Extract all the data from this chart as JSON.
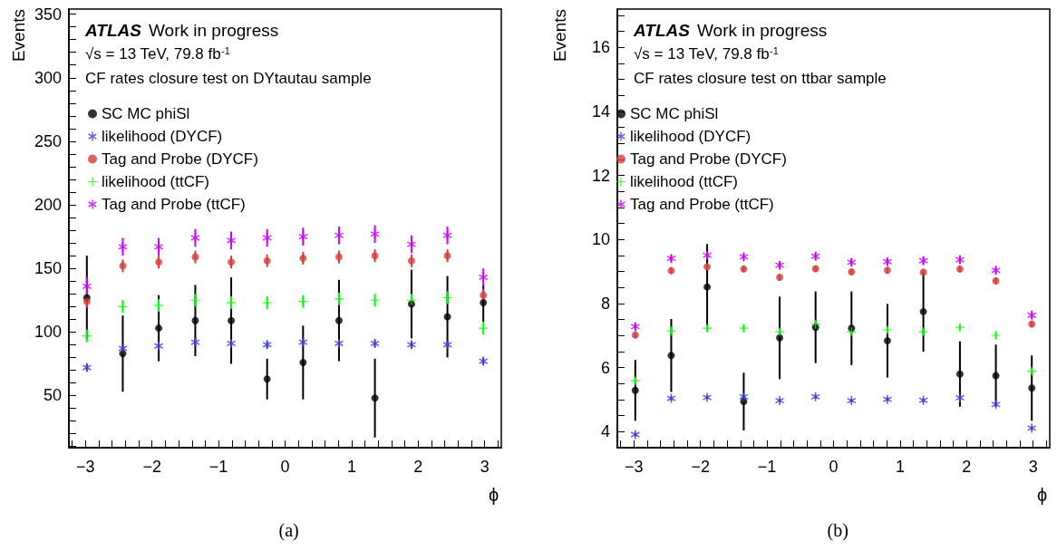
{
  "chart_data": [
    {
      "type": "scatter",
      "title": "(a)",
      "xlabel": "ϕ",
      "ylabel": "Events",
      "annotations": [
        "ATLAS",
        "Work in progress",
        "√s = 13 TeV, 79.8 fb$^{-1}$",
        "CF rates closure test on DYtautau sample"
      ],
      "x": [
        -2.98,
        -2.44,
        -1.9,
        -1.35,
        -0.81,
        -0.27,
        0.27,
        0.81,
        1.35,
        1.9,
        2.44,
        2.98
      ],
      "series": [
        {
          "name": "SC MC phiSl",
          "color": "#000000",
          "marker": "circle",
          "values": [
            127,
            83,
            103,
            109,
            109,
            63,
            76,
            109,
            48,
            122,
            112,
            123
          ],
          "errors": [
            33,
            30,
            26,
            28,
            34,
            16,
            29,
            32,
            31,
            27,
            32,
            15
          ]
        },
        {
          "name": "likelihood (DYCF)",
          "color": "#3c3cd8",
          "marker": "star",
          "values": [
            72,
            87,
            89,
            92,
            91,
            90,
            92,
            91,
            91,
            90,
            90,
            77
          ],
          "errors": [
            3,
            3,
            3,
            3,
            3,
            3,
            3,
            3,
            3,
            3,
            3,
            3
          ]
        },
        {
          "name": "Tag and Probe (DYCF)",
          "color": "#d83c3c",
          "marker": "circle",
          "values": [
            124,
            152,
            155,
            159,
            155,
            156,
            158,
            159,
            160,
            156,
            160,
            129
          ],
          "errors": [
            5,
            5,
            5,
            5,
            5,
            5,
            5,
            5,
            5,
            5,
            5,
            5
          ]
        },
        {
          "name": "likelihood (ttCF)",
          "color": "#00ff00",
          "marker": "cross",
          "values": [
            97,
            120,
            121,
            125,
            123,
            123,
            124,
            126,
            125,
            125,
            127,
            103
          ],
          "errors": [
            5,
            5,
            5,
            5,
            5,
            5,
            5,
            5,
            5,
            5,
            5,
            5
          ]
        },
        {
          "name": "Tag and Probe (ttCF)",
          "color": "#cc00ff",
          "marker": "star",
          "values": [
            136,
            167,
            167,
            174,
            172,
            174,
            175,
            176,
            177,
            169,
            176,
            143
          ],
          "errors": [
            7,
            7,
            7,
            7,
            7,
            7,
            7,
            7,
            7,
            7,
            7,
            7
          ]
        }
      ],
      "xlim": [
        -3.25,
        3.25
      ],
      "xticks": [
        {
          "value": -3.2,
          "label": null
        },
        {
          "value": -3,
          "label": "−3"
        },
        {
          "value": -2.8,
          "label": null
        },
        {
          "value": -2.6,
          "label": null
        },
        {
          "value": -2.4,
          "label": null
        },
        {
          "value": -2.2,
          "label": null
        },
        {
          "value": -2,
          "label": "−2"
        },
        {
          "value": -1.8,
          "label": null
        },
        {
          "value": -1.6,
          "label": null
        },
        {
          "value": -1.4,
          "label": null
        },
        {
          "value": -1.2,
          "label": null
        },
        {
          "value": -1,
          "label": "−1"
        },
        {
          "value": -0.8,
          "label": null
        },
        {
          "value": -0.6,
          "label": null
        },
        {
          "value": -0.4,
          "label": null
        },
        {
          "value": -0.2,
          "label": null
        },
        0,
        {
          "value": 0.2,
          "label": null
        },
        {
          "value": 0.4,
          "label": null
        },
        {
          "value": 0.6,
          "label": null
        },
        {
          "value": 0.8,
          "label": null
        },
        1,
        {
          "value": 1.2,
          "label": null
        },
        {
          "value": 1.4,
          "label": null
        },
        {
          "value": 1.6,
          "label": null
        },
        {
          "value": 1.8,
          "label": null
        },
        2,
        {
          "value": 2.2,
          "label": null
        },
        {
          "value": 2.4,
          "label": null
        },
        {
          "value": 2.6,
          "label": null
        },
        {
          "value": 2.8,
          "label": null
        },
        3,
        {
          "value": 3.2,
          "label": null
        }
      ],
      "ylim": [
        9,
        354
      ],
      "yticks": [
        {
          "value": 10,
          "label": null
        },
        {
          "value": 20,
          "label": null
        },
        {
          "value": 30,
          "label": null
        },
        {
          "value": 40,
          "label": null
        },
        50,
        {
          "value": 60,
          "label": null
        },
        {
          "value": 70,
          "label": null
        },
        {
          "value": 80,
          "label": null
        },
        {
          "value": 90,
          "label": null
        },
        100,
        {
          "value": 110,
          "label": null
        },
        {
          "value": 120,
          "label": null
        },
        {
          "value": 130,
          "label": null
        },
        {
          "value": 140,
          "label": null
        },
        150,
        {
          "value": 160,
          "label": null
        },
        {
          "value": 170,
          "label": null
        },
        {
          "value": 180,
          "label": null
        },
        {
          "value": 190,
          "label": null
        },
        200,
        {
          "value": 210,
          "label": null
        },
        {
          "value": 220,
          "label": null
        },
        {
          "value": 230,
          "label": null
        },
        {
          "value": 240,
          "label": null
        },
        250,
        {
          "value": 260,
          "label": null
        },
        {
          "value": 270,
          "label": null
        },
        {
          "value": 280,
          "label": null
        },
        {
          "value": 290,
          "label": null
        },
        300,
        {
          "value": 310,
          "label": null
        },
        {
          "value": 320,
          "label": null
        },
        {
          "value": 330,
          "label": null
        },
        {
          "value": 340,
          "label": null
        },
        350
      ],
      "grid": false,
      "legend": "top left"
    },
    {
      "type": "scatter",
      "title": "(b)",
      "xlabel": "ϕ",
      "ylabel": "Events",
      "annotations": [
        "ATLAS",
        "Work in progress",
        "√s = 13 TeV, 79.8 fb$^{-1}$",
        "CF rates closure test on ttbar sample"
      ],
      "x": [
        -2.98,
        -2.44,
        -1.9,
        -1.35,
        -0.81,
        -0.27,
        0.27,
        0.81,
        1.35,
        1.9,
        2.44,
        2.98
      ],
      "series": [
        {
          "name": "SC MC phiSl",
          "color": "#000000",
          "marker": "circle",
          "values": [
            5.29,
            6.38,
            8.52,
            4.94,
            6.93,
            7.26,
            7.23,
            6.84,
            7.75,
            5.8,
            5.75,
            5.36
          ],
          "errors": [
            0.95,
            1.14,
            1.34,
            0.9,
            1.29,
            1.12,
            1.15,
            1.15,
            1.25,
            1.02,
            0.97,
            1.02
          ]
        },
        {
          "name": "likelihood (DYCF)",
          "color": "#3c3cd8",
          "marker": "star",
          "values": [
            3.91,
            5.04,
            5.07,
            5.09,
            4.97,
            5.09,
            4.97,
            5.01,
            4.98,
            5.06,
            4.85,
            4.11
          ],
          "errors": [
            0.06,
            0.06,
            0.06,
            0.06,
            0.06,
            0.06,
            0.06,
            0.06,
            0.06,
            0.06,
            0.06,
            0.06
          ]
        },
        {
          "name": "Tag and Probe (DYCF)",
          "color": "#d83c3c",
          "marker": "circle",
          "values": [
            7.02,
            9.03,
            9.15,
            9.08,
            8.82,
            9.09,
            8.99,
            9.04,
            8.98,
            9.08,
            8.71,
            7.36
          ],
          "errors": [
            0.1,
            0.1,
            0.1,
            0.1,
            0.1,
            0.1,
            0.1,
            0.1,
            0.1,
            0.1,
            0.1,
            0.1
          ]
        },
        {
          "name": "likelihood (ttCF)",
          "color": "#00ff00",
          "marker": "cross",
          "values": [
            5.59,
            7.15,
            7.23,
            7.23,
            7.12,
            7.36,
            7.12,
            7.18,
            7.12,
            7.26,
            7.01,
            5.89
          ],
          "errors": [
            0.1,
            0.1,
            0.1,
            0.1,
            0.1,
            0.1,
            0.1,
            0.1,
            0.1,
            0.1,
            0.1,
            0.1
          ]
        },
        {
          "name": "Tag and Probe (ttCF)",
          "color": "#cc00ff",
          "marker": "star",
          "values": [
            7.28,
            9.41,
            9.51,
            9.46,
            9.2,
            9.48,
            9.29,
            9.31,
            9.34,
            9.37,
            9.04,
            7.64
          ],
          "errors": [
            0.12,
            0.12,
            0.12,
            0.12,
            0.12,
            0.12,
            0.12,
            0.12,
            0.12,
            0.12,
            0.12,
            0.12
          ]
        }
      ],
      "xlim": [
        -3.25,
        3.25
      ],
      "xticks": [
        {
          "value": -3.2,
          "label": null
        },
        {
          "value": -3,
          "label": "−3"
        },
        {
          "value": -2.8,
          "label": null
        },
        {
          "value": -2.6,
          "label": null
        },
        {
          "value": -2.4,
          "label": null
        },
        {
          "value": -2.2,
          "label": null
        },
        {
          "value": -2,
          "label": "−2"
        },
        {
          "value": -1.8,
          "label": null
        },
        {
          "value": -1.6,
          "label": null
        },
        {
          "value": -1.4,
          "label": null
        },
        {
          "value": -1.2,
          "label": null
        },
        {
          "value": -1,
          "label": "−1"
        },
        {
          "value": -0.8,
          "label": null
        },
        {
          "value": -0.6,
          "label": null
        },
        {
          "value": -0.4,
          "label": null
        },
        {
          "value": -0.2,
          "label": null
        },
        0,
        {
          "value": 0.2,
          "label": null
        },
        {
          "value": 0.4,
          "label": null
        },
        {
          "value": 0.6,
          "label": null
        },
        {
          "value": 0.8,
          "label": null
        },
        1,
        {
          "value": 1.2,
          "label": null
        },
        {
          "value": 1.4,
          "label": null
        },
        {
          "value": 1.6,
          "label": null
        },
        {
          "value": 1.8,
          "label": null
        },
        2,
        {
          "value": 2.2,
          "label": null
        },
        {
          "value": 2.4,
          "label": null
        },
        {
          "value": 2.6,
          "label": null
        },
        {
          "value": 2.8,
          "label": null
        },
        3,
        {
          "value": 3.2,
          "label": null
        }
      ],
      "ylim": [
        3.5,
        17.2
      ],
      "yticks": [
        4,
        {
          "value": 4.5,
          "label": null
        },
        {
          "value": 5,
          "label": null
        },
        {
          "value": 5.5,
          "label": null
        },
        6,
        {
          "value": 6.5,
          "label": null
        },
        {
          "value": 7,
          "label": null
        },
        {
          "value": 7.5,
          "label": null
        },
        8,
        {
          "value": 8.5,
          "label": null
        },
        {
          "value": 9,
          "label": null
        },
        {
          "value": 9.5,
          "label": null
        },
        10,
        {
          "value": 10.5,
          "label": null
        },
        {
          "value": 11,
          "label": null
        },
        {
          "value": 11.5,
          "label": null
        },
        12,
        {
          "value": 12.5,
          "label": null
        },
        {
          "value": 13,
          "label": null
        },
        {
          "value": 13.5,
          "label": null
        },
        14,
        {
          "value": 14.5,
          "label": null
        },
        {
          "value": 15,
          "label": null
        },
        {
          "value": 15.5,
          "label": null
        },
        16,
        {
          "value": 16.5,
          "label": null
        },
        {
          "value": 17,
          "label": null
        }
      ],
      "grid": false,
      "legend": "top left"
    }
  ]
}
